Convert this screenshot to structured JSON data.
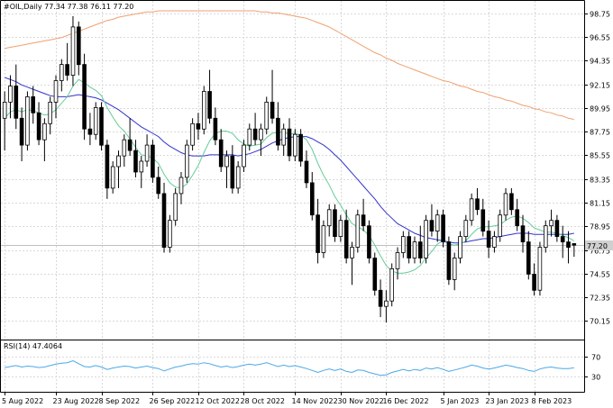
{
  "header": {
    "symbol_line": "#OIL,Daily  77.34 77.38 76.11 77.20",
    "rsi_label": "RSI(14) 47.4064"
  },
  "colors": {
    "background": "#ffffff",
    "grid": "#d9d9d9",
    "candle": "#000000",
    "ma_fast": "#66cc99",
    "ma_mid": "#3333cc",
    "ma_slow": "#f0a070",
    "rsi": "#4aa8e8",
    "price_tag_bg": "#d0d0d0"
  },
  "chart_data": [
    {
      "type": "candlestick",
      "title": "#OIL,Daily",
      "ylim": [
        69.0,
        99.5
      ],
      "price_ticks": [
        "98.75",
        "96.55",
        "94.35",
        "92.15",
        "89.95",
        "87.75",
        "85.55",
        "83.35",
        "81.15",
        "78.95",
        "76.75",
        "74.55",
        "72.35",
        "70.15"
      ],
      "date_ticks": [
        "5 Aug 2022",
        "23 Aug 2022",
        "8 Sep 2022",
        "26 Sep 2022",
        "12 Oct 2022",
        "28 Oct 2022",
        "14 Nov 2022",
        "30 Nov 2022",
        "16 Dec 2022",
        "5 Jan 2023",
        "23 Jan 2023",
        "8 Feb 2023"
      ],
      "last_price": "77.20",
      "grid": true,
      "ohlc": [
        [
          89.0,
          91.5,
          86.0,
          90.5
        ],
        [
          90.5,
          93.0,
          89.0,
          92.0
        ],
        [
          92.0,
          94.0,
          88.0,
          89.0
        ],
        [
          89.0,
          90.0,
          85.0,
          86.5
        ],
        [
          86.5,
          91.5,
          86.0,
          91.0
        ],
        [
          91.0,
          92.0,
          88.5,
          89.5
        ],
        [
          89.5,
          90.5,
          86.5,
          87.0
        ],
        [
          87.0,
          89.0,
          85.0,
          88.5
        ],
        [
          88.5,
          91.0,
          87.5,
          90.5
        ],
        [
          90.5,
          93.0,
          89.0,
          92.5
        ],
        [
          92.5,
          94.5,
          91.5,
          94.0
        ],
        [
          94.0,
          96.0,
          92.5,
          93.0
        ],
        [
          93.0,
          98.5,
          92.0,
          97.5
        ],
        [
          97.5,
          98.0,
          93.0,
          94.0
        ],
        [
          94.0,
          95.0,
          87.0,
          88.0
        ],
        [
          88.0,
          89.5,
          86.5,
          87.5
        ],
        [
          87.5,
          90.5,
          87.0,
          90.0
        ],
        [
          90.0,
          90.5,
          86.0,
          86.5
        ],
        [
          86.5,
          87.0,
          81.5,
          82.5
        ],
        [
          82.5,
          85.0,
          82.0,
          84.5
        ],
        [
          84.5,
          86.0,
          82.5,
          85.5
        ],
        [
          85.5,
          87.5,
          84.5,
          87.0
        ],
        [
          87.0,
          89.0,
          85.5,
          86.0
        ],
        [
          86.0,
          87.0,
          83.5,
          84.0
        ],
        [
          84.0,
          85.5,
          82.5,
          85.0
        ],
        [
          85.0,
          87.5,
          84.5,
          86.5
        ],
        [
          86.5,
          87.0,
          83.0,
          83.5
        ],
        [
          83.5,
          84.5,
          81.5,
          82.0
        ],
        [
          82.0,
          83.0,
          76.5,
          77.0
        ],
        [
          77.0,
          80.0,
          76.5,
          79.5
        ],
        [
          79.5,
          82.5,
          79.0,
          82.0
        ],
        [
          82.0,
          84.0,
          81.0,
          83.5
        ],
        [
          83.5,
          87.0,
          83.0,
          86.5
        ],
        [
          86.5,
          89.0,
          86.0,
          88.5
        ],
        [
          88.5,
          89.5,
          87.0,
          88.0
        ],
        [
          88.0,
          92.0,
          87.5,
          91.5
        ],
        [
          91.5,
          93.5,
          88.5,
          89.0
        ],
        [
          89.0,
          90.0,
          86.5,
          87.0
        ],
        [
          87.0,
          88.0,
          84.0,
          84.5
        ],
        [
          84.5,
          86.0,
          82.5,
          85.5
        ],
        [
          85.5,
          86.5,
          82.0,
          82.5
        ],
        [
          82.5,
          85.0,
          82.0,
          84.5
        ],
        [
          84.5,
          87.0,
          84.0,
          86.5
        ],
        [
          86.5,
          88.5,
          86.0,
          88.0
        ],
        [
          88.0,
          89.5,
          86.5,
          87.0
        ],
        [
          87.0,
          88.5,
          85.5,
          88.0
        ],
        [
          88.0,
          91.0,
          87.5,
          90.5
        ],
        [
          90.5,
          93.5,
          88.5,
          89.0
        ],
        [
          89.0,
          90.5,
          86.0,
          86.5
        ],
        [
          86.5,
          88.5,
          85.5,
          88.0
        ],
        [
          88.0,
          89.0,
          85.0,
          85.5
        ],
        [
          85.5,
          88.0,
          85.0,
          87.5
        ],
        [
          87.5,
          88.0,
          84.5,
          85.0
        ],
        [
          85.0,
          86.0,
          82.5,
          83.0
        ],
        [
          83.0,
          84.0,
          79.5,
          80.0
        ],
        [
          80.0,
          81.5,
          75.5,
          76.5
        ],
        [
          76.5,
          79.5,
          76.0,
          79.0
        ],
        [
          79.0,
          81.0,
          78.0,
          80.5
        ],
        [
          80.5,
          81.0,
          77.5,
          78.0
        ],
        [
          78.0,
          80.0,
          77.5,
          79.5
        ],
        [
          79.5,
          80.5,
          75.5,
          76.0
        ],
        [
          76.0,
          77.5,
          73.5,
          77.0
        ],
        [
          77.0,
          80.5,
          76.5,
          80.0
        ],
        [
          80.0,
          81.5,
          78.5,
          79.0
        ],
        [
          79.0,
          79.5,
          75.5,
          76.0
        ],
        [
          76.0,
          76.5,
          72.5,
          73.0
        ],
        [
          73.0,
          74.0,
          70.5,
          71.5
        ],
        [
          71.5,
          73.0,
          70.0,
          72.0
        ],
        [
          72.0,
          75.5,
          71.5,
          75.0
        ],
        [
          75.0,
          77.0,
          74.0,
          76.5
        ],
        [
          76.5,
          78.5,
          76.0,
          78.0
        ],
        [
          78.0,
          78.5,
          75.5,
          76.0
        ],
        [
          76.0,
          78.0,
          75.5,
          77.5
        ],
        [
          77.5,
          79.0,
          75.5,
          76.0
        ],
        [
          76.0,
          80.0,
          75.5,
          79.5
        ],
        [
          79.5,
          81.0,
          78.0,
          78.5
        ],
        [
          78.5,
          80.5,
          77.5,
          80.0
        ],
        [
          80.0,
          80.5,
          77.0,
          77.5
        ],
        [
          77.5,
          78.0,
          73.5,
          74.0
        ],
        [
          74.0,
          76.5,
          73.0,
          76.0
        ],
        [
          76.0,
          78.5,
          75.5,
          78.0
        ],
        [
          78.0,
          80.0,
          77.5,
          79.5
        ],
        [
          79.5,
          82.0,
          79.0,
          81.5
        ],
        [
          81.5,
          82.5,
          80.0,
          80.5
        ],
        [
          80.5,
          81.5,
          78.0,
          78.5
        ],
        [
          78.5,
          79.5,
          76.0,
          77.0
        ],
        [
          77.0,
          78.5,
          76.5,
          78.0
        ],
        [
          78.0,
          80.5,
          77.5,
          80.0
        ],
        [
          80.0,
          82.5,
          79.5,
          82.0
        ],
        [
          82.0,
          82.5,
          80.0,
          80.5
        ],
        [
          80.5,
          81.5,
          78.5,
          79.0
        ],
        [
          79.0,
          80.0,
          76.5,
          77.5
        ],
        [
          77.5,
          78.5,
          74.0,
          74.5
        ],
        [
          74.5,
          75.5,
          72.5,
          73.0
        ],
        [
          73.0,
          77.5,
          72.5,
          77.0
        ],
        [
          77.0,
          79.5,
          76.5,
          79.0
        ],
        [
          79.0,
          80.5,
          78.0,
          79.5
        ],
        [
          79.5,
          80.0,
          77.5,
          78.0
        ],
        [
          78.0,
          79.0,
          76.0,
          77.5
        ],
        [
          77.5,
          78.5,
          75.5,
          77.0
        ],
        [
          77.34,
          77.38,
          76.11,
          77.2
        ]
      ],
      "ma_fast": [
        89.0,
        89.6,
        89.8,
        89.6,
        89.8,
        89.7,
        89.5,
        89.3,
        89.4,
        89.8,
        90.4,
        91.0,
        92.0,
        92.6,
        92.3,
        91.9,
        91.6,
        91.1,
        90.0,
        89.1,
        88.3,
        87.8,
        87.1,
        86.3,
        85.6,
        85.5,
        85.3,
        84.8,
        83.8,
        83.0,
        82.6,
        82.5,
        82.9,
        83.7,
        84.6,
        85.8,
        86.9,
        87.6,
        87.8,
        87.8,
        87.6,
        87.0,
        86.6,
        86.4,
        86.5,
        86.6,
        87.2,
        87.6,
        87.7,
        87.7,
        87.5,
        87.6,
        87.4,
        87.0,
        86.1,
        84.8,
        83.7,
        82.8,
        81.7,
        80.9,
        80.0,
        79.2,
        78.9,
        78.6,
        78.1,
        77.2,
        76.2,
        75.3,
        74.8,
        74.6,
        74.6,
        74.7,
        74.9,
        75.3,
        76.0,
        76.6,
        77.3,
        77.6,
        77.3,
        77.2,
        77.3,
        77.6,
        78.2,
        78.7,
        78.9,
        78.9,
        79.0,
        79.1,
        79.5,
        79.8,
        79.9,
        79.7,
        79.3,
        78.8,
        78.6,
        78.4,
        78.4,
        78.3,
        78.1,
        77.9,
        77.6
      ],
      "ma_mid": [
        92.8,
        92.6,
        92.4,
        92.1,
        91.9,
        91.7,
        91.5,
        91.3,
        91.1,
        91.0,
        91.0,
        91.0,
        91.1,
        91.2,
        91.1,
        91.0,
        90.9,
        90.7,
        90.4,
        90.1,
        89.8,
        89.4,
        89.0,
        88.6,
        88.2,
        87.9,
        87.6,
        87.3,
        86.8,
        86.4,
        86.1,
        85.8,
        85.6,
        85.5,
        85.5,
        85.5,
        85.6,
        85.6,
        85.6,
        85.6,
        85.6,
        85.5,
        85.6,
        85.7,
        85.9,
        86.1,
        86.4,
        86.7,
        86.9,
        87.1,
        87.2,
        87.3,
        87.3,
        87.3,
        87.1,
        86.8,
        86.5,
        86.1,
        85.6,
        85.1,
        84.5,
        83.9,
        83.3,
        82.7,
        82.1,
        81.5,
        80.8,
        80.2,
        79.7,
        79.2,
        78.9,
        78.6,
        78.3,
        78.1,
        77.9,
        77.8,
        77.7,
        77.6,
        77.5,
        77.4,
        77.4,
        77.5,
        77.6,
        77.7,
        77.8,
        77.8,
        77.9,
        78.0,
        78.1,
        78.2,
        78.3,
        78.3,
        78.3,
        78.2,
        78.2,
        78.2,
        78.2,
        78.2,
        78.2,
        78.2,
        78.3
      ],
      "ma_slow": [
        95.5,
        95.6,
        95.7,
        95.8,
        95.9,
        96.0,
        96.1,
        96.2,
        96.3,
        96.4,
        96.5,
        96.7,
        96.9,
        97.1,
        97.3,
        97.5,
        97.7,
        97.9,
        98.1,
        98.2,
        98.4,
        98.5,
        98.6,
        98.7,
        98.8,
        98.9,
        98.9,
        99.0,
        99.0,
        99.0,
        99.0,
        99.0,
        99.0,
        99.0,
        99.0,
        99.0,
        99.0,
        99.0,
        99.0,
        99.0,
        99.0,
        99.0,
        99.0,
        99.0,
        99.0,
        98.9,
        98.9,
        98.8,
        98.8,
        98.7,
        98.6,
        98.5,
        98.4,
        98.3,
        98.1,
        97.9,
        97.7,
        97.5,
        97.2,
        96.9,
        96.6,
        96.3,
        96.0,
        95.7,
        95.4,
        95.1,
        94.9,
        94.6,
        94.4,
        94.1,
        93.9,
        93.7,
        93.5,
        93.3,
        93.1,
        92.9,
        92.7,
        92.5,
        92.4,
        92.2,
        92.0,
        91.9,
        91.7,
        91.5,
        91.4,
        91.2,
        91.0,
        90.9,
        90.7,
        90.6,
        90.4,
        90.2,
        90.1,
        89.9,
        89.8,
        89.6,
        89.5,
        89.3,
        89.2,
        89.0,
        88.9
      ]
    },
    {
      "type": "line",
      "title": "RSI(14) 47.4064",
      "ylim": [
        0,
        100
      ],
      "y_ticks": [
        "70",
        "30"
      ],
      "series": [
        {
          "name": "RSI(14)",
          "values": [
            48,
            50,
            52,
            49,
            51,
            50,
            48,
            49,
            52,
            55,
            57,
            58,
            62,
            56,
            50,
            49,
            52,
            49,
            44,
            47,
            49,
            51,
            50,
            47,
            49,
            51,
            48,
            46,
            41,
            45,
            49,
            51,
            54,
            56,
            55,
            58,
            56,
            52,
            49,
            51,
            48,
            50,
            53,
            55,
            53,
            55,
            58,
            54,
            50,
            53,
            50,
            52,
            49,
            46,
            42,
            38,
            42,
            45,
            42,
            45,
            40,
            38,
            43,
            42,
            38,
            35,
            32,
            33,
            38,
            41,
            44,
            41,
            44,
            42,
            47,
            45,
            48,
            44,
            40,
            43,
            46,
            49,
            53,
            51,
            47,
            45,
            47,
            50,
            53,
            51,
            48,
            46,
            42,
            40,
            45,
            48,
            49,
            47,
            46,
            46,
            47.4
          ]
        }
      ]
    }
  ]
}
